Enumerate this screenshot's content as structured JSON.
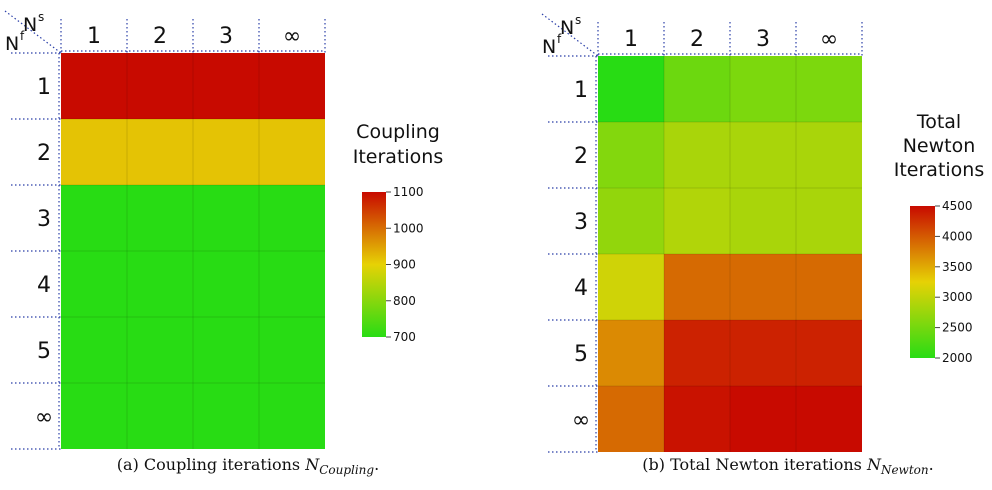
{
  "chart_data": [
    {
      "type": "heatmap",
      "row_header": "N",
      "row_header_sup": "f",
      "col_header": "N",
      "col_header_sup": "s",
      "columns": [
        "1",
        "2",
        "3",
        "∞"
      ],
      "rows": [
        "1",
        "2",
        "3",
        "4",
        "5",
        "∞"
      ],
      "legend_title": [
        "Coupling",
        "Iterations"
      ],
      "colorbar": {
        "min": 700,
        "max": 1100,
        "ticks": [
          "1100",
          "1000",
          "900",
          "800",
          "700"
        ]
      },
      "values": [
        [
          1100,
          1100,
          1100,
          1100
        ],
        [
          915,
          915,
          915,
          915
        ],
        [
          700,
          700,
          700,
          700
        ],
        [
          700,
          700,
          700,
          700
        ],
        [
          700,
          700,
          700,
          700
        ],
        [
          700,
          700,
          700,
          700
        ]
      ],
      "caption": {
        "prefix": "(a) Coupling iterations ",
        "math": "N",
        "sub": "Coupling",
        "suffix": "."
      }
    },
    {
      "type": "heatmap",
      "row_header": "N",
      "row_header_sup": "f",
      "col_header": "N",
      "col_header_sup": "s",
      "columns": [
        "1",
        "2",
        "3",
        "∞"
      ],
      "rows": [
        "1",
        "2",
        "3",
        "4",
        "5",
        "∞"
      ],
      "legend_title": [
        "Total",
        "Newton",
        "Iterations"
      ],
      "colorbar": {
        "min": 2000,
        "max": 4500,
        "ticks": [
          "4500",
          "4000",
          "3500",
          "3000",
          "2500",
          "2000"
        ]
      },
      "values": [
        [
          2000,
          2450,
          2550,
          2550
        ],
        [
          2600,
          2850,
          2850,
          2850
        ],
        [
          2700,
          2900,
          2850,
          2850
        ],
        [
          3100,
          3900,
          3900,
          3900
        ],
        [
          3700,
          4350,
          4350,
          4350
        ],
        [
          3900,
          4450,
          4500,
          4500
        ]
      ],
      "caption": {
        "prefix": "(b) Total Newton iterations ",
        "math": "N",
        "sub": "Newton",
        "suffix": "."
      }
    }
  ]
}
